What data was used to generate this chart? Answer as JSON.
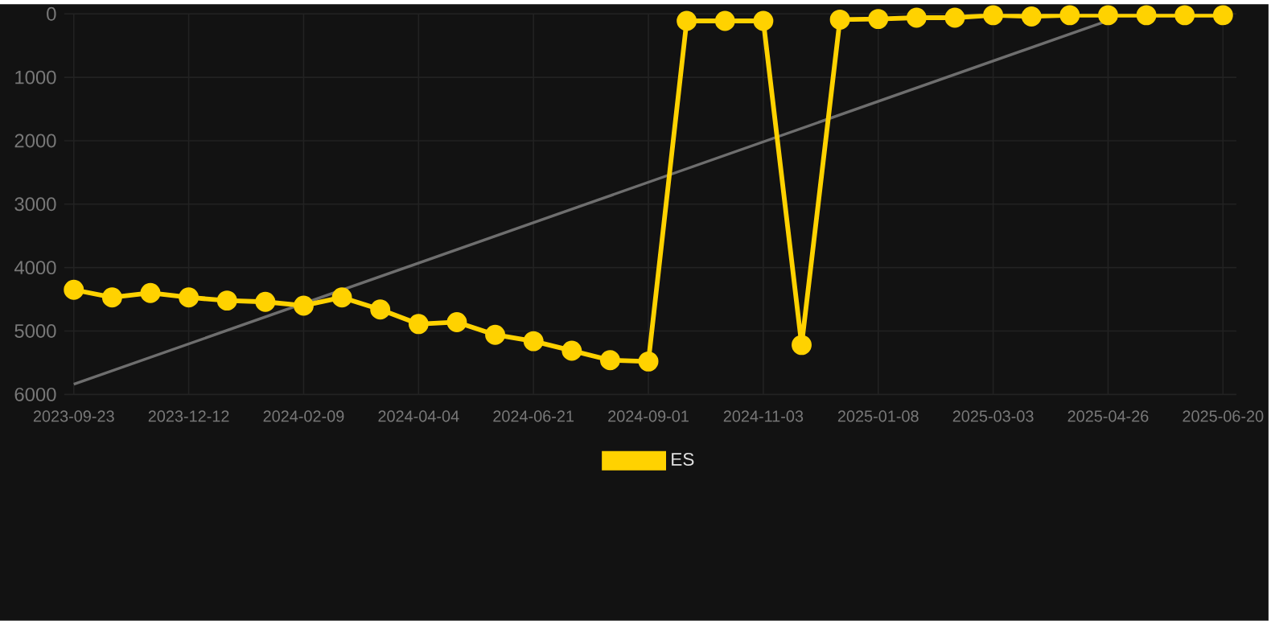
{
  "chart_data": {
    "type": "line",
    "categories": [
      "2023-09-23",
      null,
      null,
      "2023-12-12",
      null,
      null,
      "2024-02-09",
      null,
      null,
      "2024-04-04",
      null,
      null,
      "2024-06-21",
      null,
      null,
      "2024-09-01",
      null,
      null,
      "2024-11-03",
      null,
      null,
      "2025-01-08",
      null,
      null,
      "2025-03-03",
      null,
      null,
      "2025-04-26",
      null,
      null,
      "2025-06-20"
    ],
    "series": [
      {
        "type": "line",
        "color": "#6e6e6e",
        "marker": "none",
        "values": [
          5840,
          null,
          null,
          null,
          null,
          null,
          null,
          null,
          null,
          null,
          null,
          null,
          null,
          null,
          null,
          null,
          null,
          null,
          null,
          null,
          null,
          null,
          null,
          null,
          null,
          null,
          null,
          105,
          null,
          null,
          null
        ]
      },
      {
        "name": "ES",
        "color": "#ffd200",
        "values": [
          4350,
          4470,
          4400,
          4470,
          4520,
          4540,
          4600,
          4470,
          4660,
          4890,
          4860,
          5060,
          5160,
          5310,
          5460,
          5480,
          110,
          110,
          110,
          5220,
          90,
          80,
          60,
          60,
          20,
          40,
          20,
          20,
          20,
          20,
          20
        ]
      }
    ],
    "ylim": [
      6000,
      0
    ],
    "yticks": [
      0,
      1000,
      2000,
      3000,
      4000,
      5000,
      6000
    ],
    "grid": true,
    "legend": "bottom",
    "marker": "circle",
    "line_style": "solid"
  }
}
